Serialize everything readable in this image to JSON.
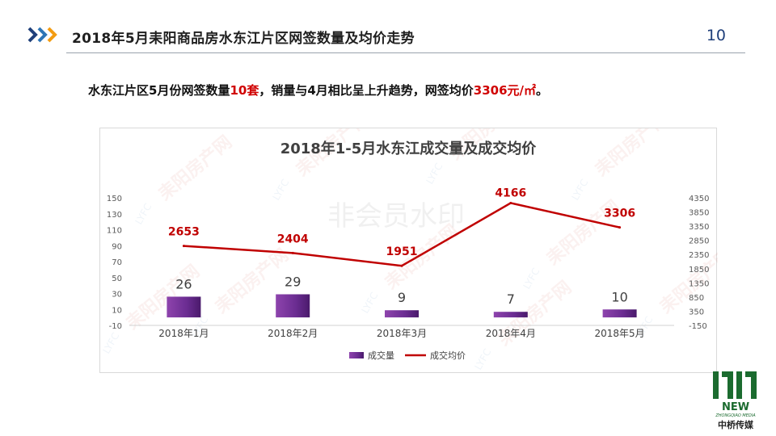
{
  "header": {
    "title": "2018年5月耒阳商品房水东江片区网签数量及均价走势",
    "page_number": "10"
  },
  "summary": {
    "part1": "水东江片区5月份网签数量",
    "count": "10套",
    "part2": "，销量与4月相比呈上升趋势，网签均价",
    "price": "3306元/㎡",
    "part3": "。"
  },
  "chart_data": {
    "type": "bar",
    "title": "2018年1-5月水东江成交量及成交均价",
    "categories": [
      "2018年1月",
      "2018年2月",
      "2018年3月",
      "2018年4月",
      "2018年5月"
    ],
    "series": [
      {
        "name": "成交量",
        "type": "bar",
        "axis": "left",
        "values": [
          26,
          29,
          9,
          7,
          10
        ],
        "color": "#6a2c91"
      },
      {
        "name": "成交均价",
        "type": "line",
        "axis": "right",
        "values": [
          2653,
          2404,
          1951,
          4166,
          3306
        ],
        "color": "#c00000"
      }
    ],
    "y_left": {
      "ticks": [
        "150",
        "130",
        "110",
        "90",
        "70",
        "50",
        "30",
        "10",
        "-10"
      ],
      "ylim": [
        -10,
        150
      ]
    },
    "y_right": {
      "ticks": [
        "4350",
        "3850",
        "3350",
        "2850",
        "2350",
        "1850",
        "1350",
        "850",
        "350",
        "-150"
      ],
      "ylim": [
        -150,
        4350
      ]
    },
    "legend_position": "bottom"
  },
  "watermark": {
    "brand": "耒阳房产网",
    "short": "LYFC",
    "notice": "非会员水印"
  },
  "logo": {
    "line1": "NEW",
    "line2": "ZHONGQIAO MEDIA",
    "line3": "中桥传媒"
  },
  "colors": {
    "accent_blue": "#1f3f7a",
    "accent_orange": "#f39c12",
    "bar": "#6a2c91",
    "line": "#c00000",
    "logo_green": "#1b6b2f"
  }
}
